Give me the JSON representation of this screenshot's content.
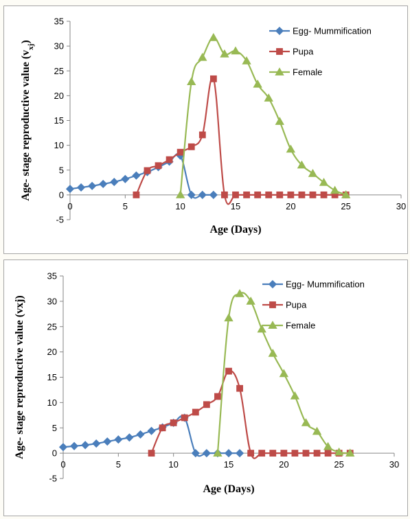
{
  "chart_data": [
    {
      "type": "line",
      "xlabel": "Age (Days)",
      "ylabel": "Age- stage reproductive value (v",
      "ylabel_sub": "xj",
      "ylabel_close": ")",
      "xlim": [
        0,
        30
      ],
      "ylim": [
        -5,
        35
      ],
      "xticks": [
        0,
        5,
        10,
        15,
        20,
        25,
        30
      ],
      "yticks": [
        -5,
        0,
        5,
        10,
        15,
        20,
        25,
        30,
        35
      ],
      "legend_position": "top-right",
      "grid": false,
      "series": [
        {
          "name": "Egg- Mummification",
          "color": "#4a7ebb",
          "marker": "diamond",
          "points": [
            [
              0,
              1.2
            ],
            [
              1,
              1.5
            ],
            [
              2,
              1.8
            ],
            [
              3,
              2.2
            ],
            [
              4,
              2.6
            ],
            [
              5,
              3.2
            ],
            [
              6,
              3.9
            ],
            [
              7,
              4.6
            ],
            [
              8,
              5.6
            ],
            [
              9,
              6.7
            ],
            [
              10,
              7.9
            ],
            [
              11,
              0
            ],
            [
              12,
              0
            ],
            [
              13,
              0
            ]
          ]
        },
        {
          "name": "Pupa",
          "color": "#be4b48",
          "marker": "square",
          "points": [
            [
              6,
              0
            ],
            [
              7,
              4.9
            ],
            [
              8,
              5.9
            ],
            [
              9,
              7.1
            ],
            [
              10,
              8.6
            ],
            [
              11,
              9.7
            ],
            [
              12,
              12.1
            ],
            [
              13,
              23.4
            ],
            [
              14,
              0
            ],
            [
              15,
              0
            ],
            [
              16,
              0
            ],
            [
              17,
              0
            ],
            [
              18,
              0
            ],
            [
              19,
              0
            ],
            [
              20,
              0
            ],
            [
              21,
              0
            ],
            [
              22,
              0
            ],
            [
              23,
              0
            ],
            [
              24,
              0
            ],
            [
              25,
              0
            ]
          ]
        },
        {
          "name": "Female",
          "color": "#98b954",
          "marker": "triangle",
          "points": [
            [
              10,
              0
            ],
            [
              11,
              22.8
            ],
            [
              12,
              27.7
            ],
            [
              13,
              31.7
            ],
            [
              14,
              28.4
            ],
            [
              15,
              29.0
            ],
            [
              16,
              27.0
            ],
            [
              17,
              22.3
            ],
            [
              18,
              19.5
            ],
            [
              19,
              14.8
            ],
            [
              20,
              9.2
            ],
            [
              21,
              6.0
            ],
            [
              22,
              4.3
            ],
            [
              23,
              2.5
            ],
            [
              24,
              0.9
            ],
            [
              25,
              0
            ]
          ]
        }
      ]
    },
    {
      "type": "line",
      "xlabel": "Age (Days)",
      "ylabel": "Age- stage reproductive value (vxj)",
      "xlim": [
        0,
        30
      ],
      "ylim": [
        -5,
        35
      ],
      "xticks": [
        0,
        5,
        10,
        15,
        20,
        25,
        30
      ],
      "yticks": [
        -5,
        0,
        5,
        10,
        15,
        20,
        25,
        30,
        35
      ],
      "legend_position": "top-right",
      "grid": false,
      "series": [
        {
          "name": "Egg- Mummification",
          "color": "#4a7ebb",
          "marker": "diamond",
          "points": [
            [
              0,
              1.2
            ],
            [
              1,
              1.4
            ],
            [
              2,
              1.6
            ],
            [
              3,
              1.9
            ],
            [
              4,
              2.3
            ],
            [
              5,
              2.7
            ],
            [
              6,
              3.1
            ],
            [
              7,
              3.7
            ],
            [
              8,
              4.4
            ],
            [
              9,
              5.1
            ],
            [
              10,
              6.0
            ],
            [
              11,
              7.0
            ],
            [
              12,
              0
            ],
            [
              13,
              0
            ],
            [
              14,
              0
            ],
            [
              15,
              0
            ],
            [
              16,
              0
            ]
          ]
        },
        {
          "name": "Pupa",
          "color": "#be4b48",
          "marker": "square",
          "points": [
            [
              8,
              0
            ],
            [
              9,
              5.0
            ],
            [
              10,
              6.0
            ],
            [
              11,
              7.0
            ],
            [
              12,
              8.1
            ],
            [
              13,
              9.6
            ],
            [
              14,
              11.2
            ],
            [
              15,
              16.2
            ],
            [
              16,
              12.8
            ],
            [
              17,
              0
            ],
            [
              18,
              0
            ],
            [
              19,
              0
            ],
            [
              20,
              0
            ],
            [
              21,
              0
            ],
            [
              22,
              0
            ],
            [
              23,
              0
            ],
            [
              24,
              0
            ],
            [
              25,
              0
            ],
            [
              26,
              0
            ]
          ]
        },
        {
          "name": "Female",
          "color": "#98b954",
          "marker": "triangle",
          "points": [
            [
              14,
              0
            ],
            [
              15,
              26.7
            ],
            [
              16,
              31.5
            ],
            [
              17,
              30.0
            ],
            [
              18,
              24.5
            ],
            [
              19,
              19.7
            ],
            [
              20,
              15.7
            ],
            [
              21,
              11.3
            ],
            [
              22,
              6.0
            ],
            [
              23,
              4.3
            ],
            [
              24,
              1.3
            ],
            [
              25,
              0.2
            ],
            [
              26,
              0
            ]
          ]
        }
      ]
    }
  ]
}
